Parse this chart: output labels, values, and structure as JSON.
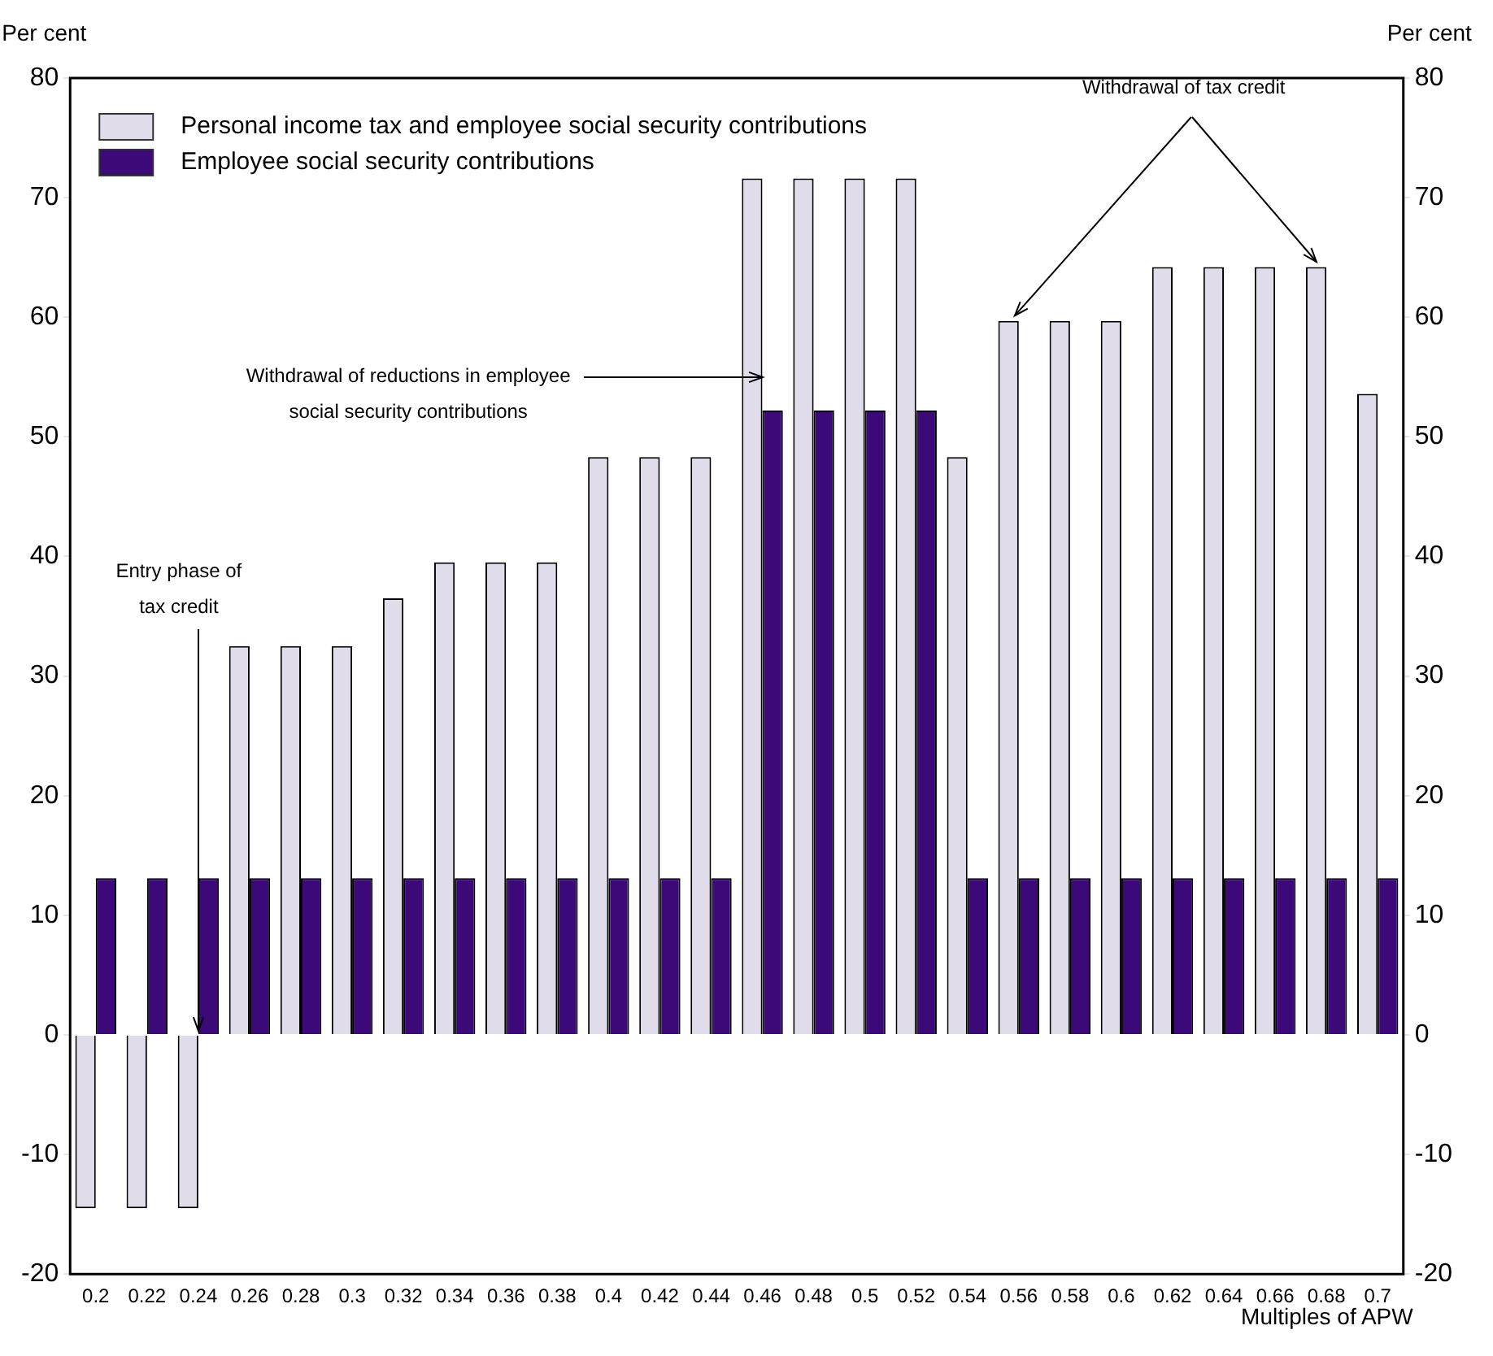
{
  "chart_data": {
    "type": "bar",
    "xlabel": "Multiples of APW",
    "ylabel": "Per cent",
    "y2label": "Per cent",
    "categories": [
      "0.2",
      "0.22",
      "0.24",
      "0.26",
      "0.28",
      "0.3",
      "0.32",
      "0.34",
      "0.36",
      "0.38",
      "0.4",
      "0.42",
      "0.44",
      "0.46",
      "0.48",
      "0.5",
      "0.52",
      "0.54",
      "0.56",
      "0.58",
      "0.6",
      "0.62",
      "0.64",
      "0.66",
      "0.68",
      "0.7"
    ],
    "series": [
      {
        "name": "Personal income tax and employee social security contributions",
        "color": "#e0dcea",
        "values": [
          -14.5,
          -14.5,
          -14.5,
          32.5,
          32.5,
          32.5,
          36.5,
          39.5,
          39.5,
          39.5,
          48.3,
          48.3,
          48.3,
          71.6,
          71.6,
          71.6,
          71.6,
          48.3,
          59.7,
          59.7,
          59.7,
          64.2,
          64.2,
          64.2,
          64.2,
          53.6
        ]
      },
      {
        "name": "Employee social security contributions",
        "color": "#3c0a78",
        "values": [
          13.1,
          13.1,
          13.1,
          13.1,
          13.1,
          13.1,
          13.1,
          13.1,
          13.1,
          13.1,
          13.1,
          13.1,
          13.1,
          52.2,
          52.2,
          52.2,
          52.2,
          13.1,
          13.1,
          13.1,
          13.1,
          13.1,
          13.1,
          13.1,
          13.1,
          13.1
        ]
      }
    ],
    "ylim": [
      -20,
      80
    ],
    "yticks": [
      -20,
      -10,
      0,
      10,
      20,
      30,
      40,
      50,
      60,
      70,
      80
    ],
    "y2lim": [
      -20,
      80
    ],
    "y2ticks": [
      -20,
      -10,
      0,
      10,
      20,
      30,
      40,
      50,
      60,
      70,
      80
    ],
    "grid": false,
    "legend": "top left",
    "annotations": [
      {
        "text": "Entry phase of tax credit",
        "x": "0.24",
        "y": 0
      },
      {
        "text": "Withdrawal of reductions in employee social security contributions",
        "x": "0.46",
        "y": 55
      },
      {
        "text": "Withdrawal of tax credit",
        "x": "0.56",
        "y": 59.7
      }
    ]
  }
}
